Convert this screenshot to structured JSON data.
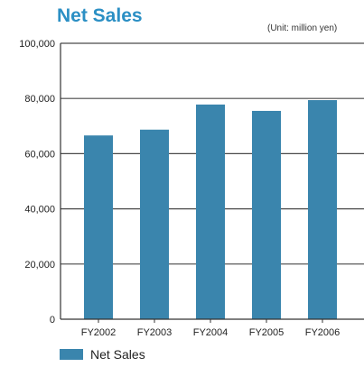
{
  "title": "Net Sales",
  "unit_note": "(Unit: million yen)",
  "colors": {
    "bar": "#3a85ad",
    "title": "#2b8fc4",
    "grid": "#4a4a4a"
  },
  "chart_data": {
    "type": "bar",
    "title": "Net Sales",
    "categories": [
      "FY2002",
      "FY2003",
      "FY2004",
      "FY2005",
      "FY2006"
    ],
    "series": [
      {
        "name": "Net Sales",
        "values": [
          66600,
          68700,
          77800,
          75500,
          79400
        ]
      }
    ],
    "yticks": [
      "0",
      "20,000",
      "40,000",
      "60,000",
      "80,000",
      "100,000"
    ],
    "ylim": [
      0,
      100000
    ],
    "grid": true,
    "legend": "bottom-left"
  },
  "legend": {
    "label": "Net Sales"
  }
}
